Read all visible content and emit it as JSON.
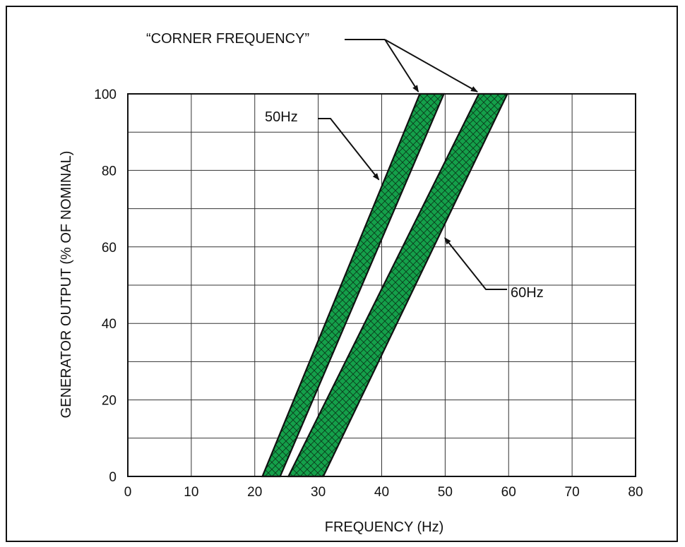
{
  "chart_data": {
    "type": "area",
    "xlabel": "FREQUENCY (Hz)",
    "ylabel": "GENERATOR OUTPUT (% OF NOMINAL)",
    "xlim": [
      0,
      80
    ],
    "ylim": [
      0,
      100
    ],
    "x_ticks": [
      0,
      10,
      20,
      30,
      40,
      50,
      60,
      70,
      80
    ],
    "y_ticks": [
      0,
      20,
      40,
      60,
      80,
      100
    ],
    "grid": true,
    "x_tick_labels": [
      "0",
      "10",
      "20",
      "30",
      "40",
      "50",
      "60",
      "70",
      "80"
    ],
    "y_tick_labels": [
      "0",
      "20",
      "40",
      "60",
      "80",
      "100"
    ],
    "series": [
      {
        "name": "50Hz",
        "color": "#14a04a",
        "band": [
          {
            "y": 0,
            "x_low": 21.2,
            "x_high": 24.0
          },
          {
            "y": 100,
            "x_low": 46.0,
            "x_high": 49.8
          }
        ]
      },
      {
        "name": "60Hz",
        "color": "#14a04a",
        "band": [
          {
            "y": 0,
            "x_low": 25.3,
            "x_high": 30.8
          },
          {
            "y": 100,
            "x_low": 55.3,
            "x_high": 59.8
          }
        ]
      }
    ],
    "annotations": [
      {
        "text": "“CORNER FREQUENCY”",
        "points_to": [
          {
            "x": 46.0,
            "y": 100
          },
          {
            "x": 55.3,
            "y": 100
          }
        ]
      },
      {
        "text": "50Hz",
        "points_to": [
          {
            "x": 40.0,
            "y": 77
          }
        ]
      },
      {
        "text": "60Hz",
        "points_to": [
          {
            "x": 49.5,
            "y": 62
          }
        ]
      }
    ]
  }
}
